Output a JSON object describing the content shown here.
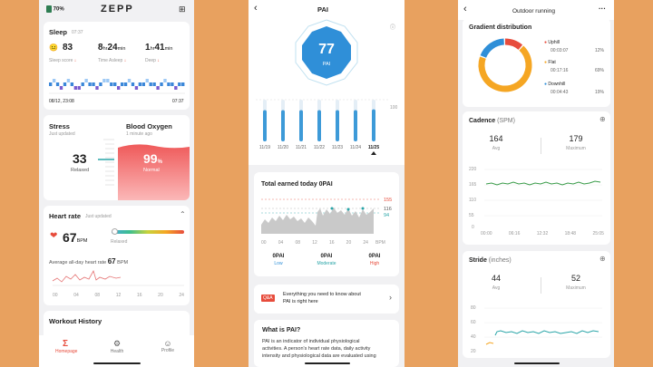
{
  "p1": {
    "battery": "70%",
    "logo": "ZEPP",
    "sleep": {
      "title": "Sleep",
      "time": "07:37",
      "score": "83",
      "score_label": "Sleep score",
      "asleep_h": "8",
      "asleep_h_unit": "hr",
      "asleep_m": "24",
      "asleep_m_unit": "min",
      "asleep_label": "Time Asleep",
      "deep_h": "1",
      "deep_h_unit": "hr",
      "deep_m": "41",
      "deep_m_unit": "min",
      "deep_label": "Deep",
      "start": "08/12, 23:08",
      "end": "07:37"
    },
    "stress": {
      "title": "Stress",
      "sub": "Just updated",
      "value": "33",
      "label": "Relaxed"
    },
    "oxygen": {
      "title": "Blood Oxygen",
      "sub": "1 minute ago",
      "value": "99",
      "unit": "%",
      "label": "Normal"
    },
    "heart": {
      "title": "Heart rate",
      "sub": "Just updated",
      "value": "67",
      "unit": "BPM",
      "state": "Relaxed",
      "avg_label": "Average all-day heart rate",
      "avg_value": "67",
      "avg_unit": "BPM",
      "ticks": [
        "00",
        "04",
        "08",
        "12",
        "16",
        "20",
        "24"
      ]
    },
    "workout": {
      "title": "Workout History"
    },
    "nav": [
      {
        "label": "Homepage",
        "active": true
      },
      {
        "label": "Health"
      },
      {
        "label": "Profile"
      }
    ]
  },
  "p2": {
    "title": "PAI",
    "pai_value": "77",
    "pai_unit": "PAI",
    "bar_max_label": "100",
    "bars": [
      {
        "date": "11/19",
        "value": 75
      },
      {
        "date": "11/20",
        "value": 75
      },
      {
        "date": "11/21",
        "value": 75
      },
      {
        "date": "11/22",
        "value": 75
      },
      {
        "date": "11/23",
        "value": 75
      },
      {
        "date": "11/24",
        "value": 75
      },
      {
        "date": "11/25",
        "value": 77
      }
    ],
    "today": {
      "title": "Total earned today 0PAI",
      "y_labels": [
        "155",
        "116",
        "94"
      ],
      "x_labels": [
        "00",
        "04",
        "08",
        "12",
        "16",
        "20",
        "24"
      ],
      "x_unit": "BPM",
      "zones": [
        {
          "value": "0PAI",
          "label": "Low"
        },
        {
          "value": "0PAI",
          "label": "Moderate"
        },
        {
          "value": "0PAI",
          "label": "High"
        }
      ]
    },
    "qa": {
      "badge": "Q&A",
      "text1": "Everything you need to know about",
      "text2": "PAI is right here"
    },
    "what": {
      "title": "What is PAI?",
      "text1": "PAI is an indicator of individual physiological",
      "text2": "activities. A person's heart rate data, daily activity",
      "text3": "intensity and physiological data are evaluated using"
    }
  },
  "p3": {
    "title": "Outdoor running",
    "gradient": {
      "title": "Gradient distribution",
      "items": [
        {
          "label": "Uphill",
          "time": "00:03:07",
          "pct": "12%",
          "color": "#e74c3c",
          "frac": 0.12
        },
        {
          "label": "Flat",
          "time": "00:17:16",
          "pct": "69%",
          "color": "#f5a623",
          "frac": 0.69
        },
        {
          "label": "Downhill",
          "time": "00:04:43",
          "pct": "19%",
          "color": "#2f8fd8",
          "frac": 0.19
        }
      ]
    },
    "cadence": {
      "title": "Cadence",
      "unit": "(SPM)",
      "avg": "164",
      "avg_label": "Avg",
      "max": "179",
      "max_label": "Maximum",
      "y_labels": [
        "220",
        "165",
        "110",
        "55",
        "0"
      ],
      "x_labels": [
        "00:00",
        "06:16",
        "12:32",
        "18:48",
        "25:05"
      ]
    },
    "stride": {
      "title": "Stride",
      "unit": "(inches)",
      "avg": "44",
      "avg_label": "Avg",
      "max": "52",
      "max_label": "Maximum",
      "y_labels": [
        "80",
        "60",
        "40",
        "20"
      ]
    }
  }
}
